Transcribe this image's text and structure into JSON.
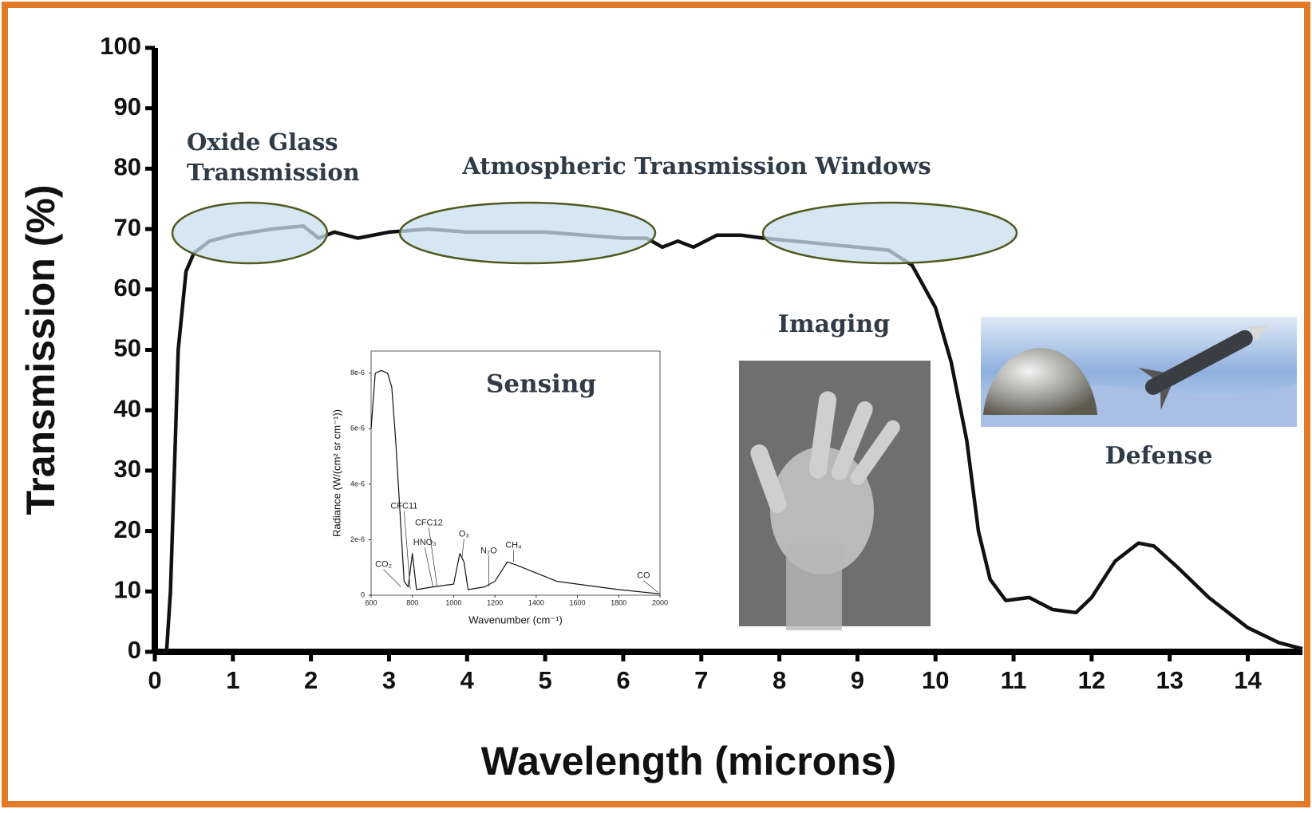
{
  "chart_data": [
    {
      "type": "line",
      "xlabel": "Wavelength (microns)",
      "ylabel": "Transmission (%)",
      "annotations": [
        "Oxide Glass",
        "Transmission",
        "Atmospheric Transmission Windows",
        "Sensing",
        "Imaging",
        "Defense"
      ],
      "x": [
        0.1,
        0.15,
        0.2,
        0.25,
        0.3,
        0.4,
        0.5,
        0.7,
        1.0,
        1.5,
        1.9,
        2.1,
        2.3,
        2.6,
        3,
        3.5,
        4,
        4.5,
        5,
        5.5,
        6,
        6.3,
        6.5,
        6.7,
        6.9,
        7.2,
        7.5,
        7.8,
        8.2,
        8.6,
        9,
        9.4,
        9.7,
        10,
        10.2,
        10.4,
        10.55,
        10.7,
        10.9,
        11.2,
        11.5,
        11.8,
        12,
        12.3,
        12.6,
        12.8,
        13.1,
        13.5,
        14,
        14.4,
        14.7
      ],
      "series": [
        {
          "color": "#111111",
          "values": [
            0,
            0,
            10,
            30,
            50,
            63,
            66,
            68,
            69,
            70,
            70.5,
            68.5,
            69.5,
            68.5,
            69.5,
            70,
            69.5,
            69.5,
            69.5,
            69,
            68.5,
            68.5,
            67,
            68,
            67,
            69,
            69,
            68.5,
            68,
            67.5,
            67,
            66.5,
            64,
            57,
            48,
            35,
            20,
            12,
            8.5,
            9,
            7,
            6.5,
            9,
            15,
            18,
            17.5,
            14,
            9,
            4,
            1.5,
            0.5
          ]
        }
      ],
      "xlim": [
        0,
        14.7
      ],
      "ylim": [
        0,
        100
      ],
      "xticks": [
        0,
        1,
        2,
        3,
        4,
        5,
        6,
        7,
        8,
        9,
        10,
        11,
        12,
        13,
        14
      ],
      "yticks": [
        0,
        10,
        20,
        30,
        40,
        50,
        60,
        70,
        80,
        90,
        100
      ]
    },
    {
      "type": "line",
      "xlabel": "Wavenumber (cm⁻¹)",
      "ylabel": "Radiance (W/(cm² sr cm⁻¹))",
      "annotations": [
        "CO₂",
        "CFC11",
        "CFC12",
        "HNO₃",
        "O₃",
        "N₂O",
        "CH₄",
        "CO"
      ],
      "x": [
        600,
        620,
        650,
        680,
        700,
        720,
        740,
        760,
        780,
        800,
        820,
        900,
        1000,
        1030,
        1050,
        1070,
        1150,
        1200,
        1260,
        1300,
        1400,
        1500,
        1600,
        1800,
        2000
      ],
      "series": [
        {
          "color": "#111111",
          "values": [
            6e-06,
            8e-06,
            8.1e-06,
            8e-06,
            7.5e-06,
            5.5e-06,
            3e-06,
            5e-07,
            3e-07,
            1.5e-06,
            2e-07,
            3e-07,
            4e-07,
            1.5e-06,
            1.2e-06,
            2e-07,
            3e-07,
            5e-07,
            1.2e-06,
            1.1e-06,
            8e-07,
            5e-07,
            4e-07,
            2e-07,
            5e-08
          ]
        }
      ],
      "xlim": [
        600,
        2000
      ],
      "ylim": [
        0,
        8.8e-06
      ],
      "xticks": [
        600,
        800,
        1000,
        1200,
        1400,
        1600,
        1800,
        2000
      ],
      "yticks": [
        0,
        {
          "value": 2e-06,
          "label": "2e-6"
        },
        {
          "value": 4e-06,
          "label": "4e-6"
        },
        {
          "value": 6e-06,
          "label": "6e-6"
        },
        {
          "value": 8e-06,
          "label": "8e-6"
        }
      ]
    }
  ]
}
